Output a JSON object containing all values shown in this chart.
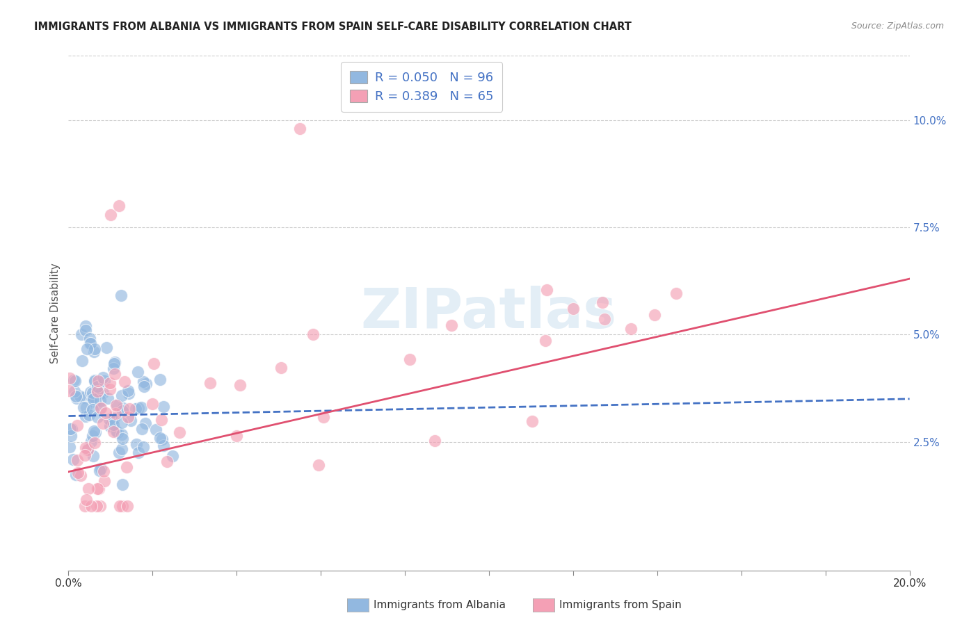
{
  "title": "IMMIGRANTS FROM ALBANIA VS IMMIGRANTS FROM SPAIN SELF-CARE DISABILITY CORRELATION CHART",
  "source": "Source: ZipAtlas.com",
  "ylabel": "Self-Care Disability",
  "right_yticks": [
    "2.5%",
    "5.0%",
    "7.5%",
    "10.0%"
  ],
  "right_ytick_vals": [
    0.025,
    0.05,
    0.075,
    0.1
  ],
  "xlim": [
    0.0,
    0.2
  ],
  "ylim": [
    -0.005,
    0.115
  ],
  "albania_color": "#92b8e0",
  "spain_color": "#f4a0b5",
  "albania_line_color": "#4472c4",
  "spain_line_color": "#e05070",
  "albania_R": 0.05,
  "albania_N": 96,
  "spain_R": 0.389,
  "spain_N": 65,
  "watermark": "ZIPatlas",
  "albania_seed": 42,
  "spain_seed": 99
}
